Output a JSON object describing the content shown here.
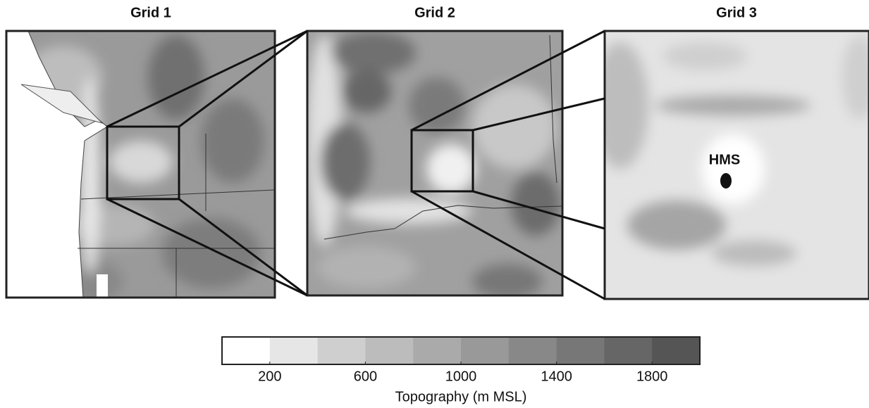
{
  "panels": [
    {
      "title": "Grid 1"
    },
    {
      "title": "Grid 2"
    },
    {
      "title": "Grid 3"
    }
  ],
  "marker": {
    "label": "HMS"
  },
  "colorbar": {
    "label": "Topography (m MSL)",
    "lim": [
      0,
      2000
    ],
    "ticks": [
      200,
      600,
      1000,
      1400,
      1800
    ],
    "colors": [
      "#ffffff",
      "#e6e6e6",
      "#cfcfcf",
      "#bcbcbc",
      "#aaaaaa",
      "#999999",
      "#888888",
      "#777777",
      "#666666",
      "#555555"
    ]
  }
}
